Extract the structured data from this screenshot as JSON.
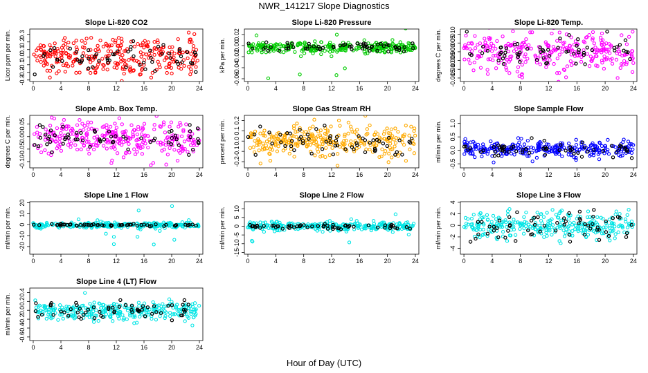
{
  "page": {
    "title": "NWR_141217  Slope Diagnostics",
    "xlabel": "Hour of Day (UTC)"
  },
  "colors": {
    "black_points": "#000000",
    "frame": "#000000"
  },
  "chart_data": [
    {
      "type": "scatter",
      "title": "Slope Li-820 CO2",
      "ylabel": "Licor ppm per min.",
      "color": "#ff0000",
      "xlim": [
        -0.5,
        24.5
      ],
      "ylim": [
        -0.32,
        0.37
      ],
      "xticks": [
        0,
        4,
        8,
        12,
        16,
        20,
        24
      ],
      "yticks": [
        -0.3,
        -0.2,
        -0.1,
        0.0,
        0.1,
        0.2,
        0.3
      ],
      "ytick_labels": [
        "-0.3",
        "-0.2",
        "-0.1",
        "0.0",
        "0.1",
        "0.2",
        "0.3"
      ],
      "spread": 0.12,
      "outlier_spread": 0.3,
      "black_spread": 0.1
    },
    {
      "type": "scatter",
      "title": "Slope Li-820 Pressure",
      "ylabel": "kPa per min.",
      "color": "#00cc00",
      "xlim": [
        -0.5,
        24.5
      ],
      "ylim": [
        -0.065,
        0.03
      ],
      "xticks": [
        0,
        4,
        8,
        12,
        16,
        20,
        24
      ],
      "yticks": [
        -0.06,
        -0.04,
        -0.02,
        0.0,
        0.02
      ],
      "ytick_labels": [
        "-0.06",
        "-0.04",
        "-0.02",
        "0.00",
        "0.02"
      ],
      "spread": 0.005,
      "outlier_spread": 0.06,
      "black_spread": 0.004
    },
    {
      "type": "scatter",
      "title": "Slope Li-820 Temp.",
      "ylabel": "degrees C per min.",
      "color": "#ff00ff",
      "xlim": [
        -0.5,
        24.5
      ],
      "ylim": [
        -0.017,
        0.013
      ],
      "xticks": [
        0,
        4,
        8,
        12,
        16,
        20,
        24
      ],
      "yticks": [
        -0.015,
        -0.01,
        -0.005,
        0.0,
        0.005,
        0.01
      ],
      "ytick_labels": [
        "-0.015",
        "-0.010",
        "-0.005",
        "0.000",
        "0.005",
        "0.010"
      ],
      "spread": 0.0055,
      "outlier_spread": 0.015,
      "black_spread": 0.004
    },
    {
      "type": "scatter",
      "title": "Slope Amb. Box Temp.",
      "ylabel": "degrees C per min.",
      "color": "#ff00ff",
      "xlim": [
        -0.5,
        24.5
      ],
      "ylim": [
        -0.125,
        0.085
      ],
      "xticks": [
        0,
        4,
        8,
        12,
        16,
        20,
        24
      ],
      "yticks": [
        -0.1,
        -0.05,
        0.0,
        0.05
      ],
      "ytick_labels": [
        "-0.10",
        "-0.05",
        "0.00",
        "0.05"
      ],
      "spread": 0.035,
      "outlier_spread": 0.11,
      "black_spread": 0.03
    },
    {
      "type": "scatter",
      "title": "Slope Gas Stream RH",
      "ylabel": "percent per min.",
      "color": "#ffaa00",
      "xlim": [
        -0.5,
        24.5
      ],
      "ylim": [
        -0.26,
        0.25
      ],
      "xticks": [
        0,
        4,
        8,
        12,
        16,
        20,
        24
      ],
      "yticks": [
        -0.2,
        -0.1,
        0.0,
        0.1,
        0.2
      ],
      "ytick_labels": [
        "-0.2",
        "-0.1",
        "0.0",
        "0.1",
        "0.2"
      ],
      "spread": 0.08,
      "outlier_spread": 0.22,
      "black_spread": 0.07
    },
    {
      "type": "scatter",
      "title": "Slope Sample Flow",
      "ylabel": "ml/min per min.",
      "color": "#0000ff",
      "xlim": [
        -0.5,
        24.5
      ],
      "ylim": [
        -0.65,
        1.3
      ],
      "xticks": [
        0,
        4,
        8,
        12,
        16,
        20,
        24
      ],
      "yticks": [
        -0.5,
        0.0,
        0.5,
        1.0
      ],
      "ytick_labels": [
        "-0.5",
        "0.0",
        "0.5",
        "1.0"
      ],
      "spread": 0.14,
      "outlier_spread": 0.5,
      "black_spread": 0.12
    },
    {
      "type": "scatter",
      "title": "Slope Line 1 Flow",
      "ylabel": "ml/min per min.",
      "color": "#00e5e5",
      "xlim": [
        -0.5,
        24.5
      ],
      "ylim": [
        -27,
        21
      ],
      "xticks": [
        0,
        4,
        8,
        12,
        16,
        20,
        24
      ],
      "yticks": [
        -20,
        -10,
        0,
        10,
        20
      ],
      "ytick_labels": [
        "-20",
        "-10",
        "0",
        "10",
        "20"
      ],
      "spread": 1.2,
      "outlier_spread": 18,
      "black_spread": 0.5
    },
    {
      "type": "scatter",
      "title": "Slope Line 2 Flow",
      "ylabel": "ml/min per min.",
      "color": "#00e5e5",
      "xlim": [
        -0.5,
        24.5
      ],
      "ylim": [
        -16,
        14
      ],
      "xticks": [
        0,
        4,
        8,
        12,
        16,
        20,
        24
      ],
      "yticks": [
        -15,
        -10,
        -5,
        0,
        5,
        10
      ],
      "ytick_labels": [
        "-15",
        "-10",
        "-5",
        "0",
        "5",
        "10"
      ],
      "spread": 1.2,
      "outlier_spread": 12,
      "black_spread": 0.8
    },
    {
      "type": "scatter",
      "title": "Slope Line 3 Flow",
      "ylabel": "ml/min per min.",
      "color": "#00e5e5",
      "xlim": [
        -0.5,
        24.5
      ],
      "ylim": [
        -5,
        4.1
      ],
      "xticks": [
        0,
        4,
        8,
        12,
        16,
        20,
        24
      ],
      "yticks": [
        -4,
        -2,
        0,
        2,
        4
      ],
      "ytick_labels": [
        "-4",
        "-2",
        "0",
        "2",
        "4"
      ],
      "spread": 1.1,
      "outlier_spread": 3.5,
      "black_spread": 1.5
    },
    {
      "type": "scatter",
      "title": "Slope Line 4 (LT) Flow",
      "ylabel": "ml/min per min.",
      "color": "#00e5e5",
      "xlim": [
        -0.5,
        24.5
      ],
      "ylim": [
        -0.68,
        0.5
      ],
      "xticks": [
        0,
        4,
        8,
        12,
        16,
        20,
        24
      ],
      "yticks": [
        -0.6,
        -0.4,
        -0.2,
        0.0,
        0.2,
        0.4
      ],
      "ytick_labels": [
        "-0.6",
        "-0.4",
        "-0.2",
        "0.0",
        "0.2",
        "0.4"
      ],
      "spread": 0.1,
      "outlier_spread": 0.45,
      "black_spread": 0.1
    }
  ]
}
